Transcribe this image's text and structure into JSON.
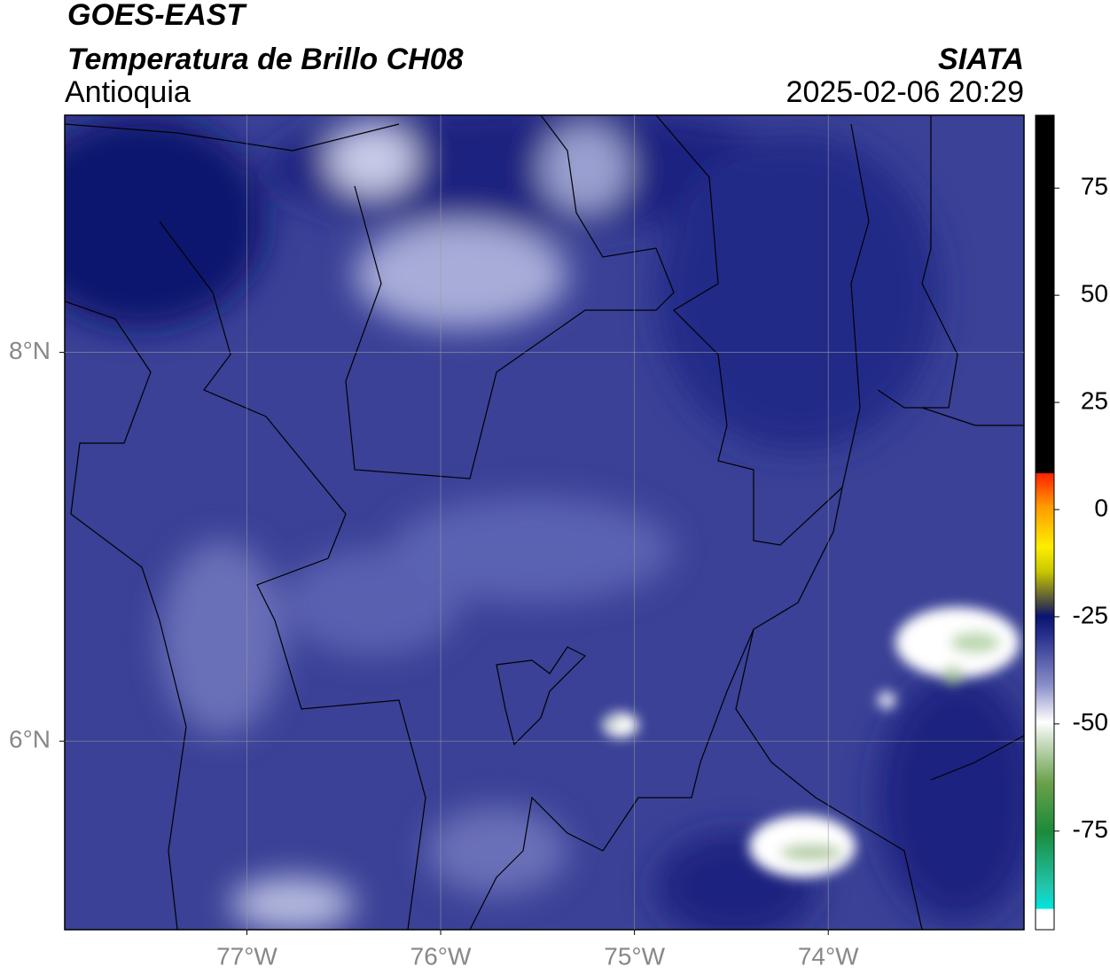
{
  "chart_data": {
    "type": "map",
    "title": "GOES-EAST",
    "subtitle": "Temperatura de Brillo CH08",
    "region": "Antioquia",
    "source": "SIATA",
    "datetime": "2025-02-06 20:29",
    "xlim": [
      -77.94,
      -72.99
    ],
    "ylim": [
      5.03,
      9.22
    ],
    "xticks": [
      {
        "value": -77,
        "label": "77°W"
      },
      {
        "value": -76,
        "label": "76°W"
      },
      {
        "value": -75,
        "label": "75°W"
      },
      {
        "value": -74,
        "label": "74°W"
      }
    ],
    "yticks": [
      {
        "value": 8,
        "label": "8°N"
      },
      {
        "value": 6,
        "label": "6°N"
      }
    ],
    "grid": true,
    "colorbar": {
      "lim": [
        -98,
        92
      ],
      "ticks": [
        75,
        50,
        25,
        0,
        -25,
        -50,
        -75
      ]
    }
  }
}
